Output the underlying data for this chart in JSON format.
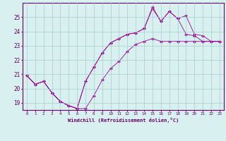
{
  "xlabel": "Windchill (Refroidissement éolien,°C)",
  "hours": [
    0,
    1,
    2,
    3,
    4,
    5,
    6,
    7,
    8,
    9,
    10,
    11,
    12,
    13,
    14,
    15,
    16,
    17,
    18,
    19,
    20,
    21,
    22,
    23
  ],
  "series_min": [
    20.9,
    20.3,
    20.5,
    19.7,
    19.1,
    18.8,
    18.6,
    18.6,
    19.5,
    20.6,
    21.4,
    21.9,
    22.6,
    23.1,
    23.3,
    23.5,
    23.3,
    23.3,
    23.3,
    23.3,
    23.3,
    23.3,
    23.3,
    23.3
  ],
  "series_mean": [
    20.9,
    20.3,
    20.5,
    19.7,
    19.1,
    18.8,
    18.6,
    20.5,
    21.5,
    22.5,
    23.2,
    23.5,
    23.8,
    23.9,
    24.2,
    25.6,
    24.7,
    25.4,
    24.9,
    23.8,
    23.7,
    23.3,
    23.3,
    23.3
  ],
  "series_max": [
    20.9,
    20.3,
    20.5,
    19.7,
    19.1,
    18.8,
    18.6,
    20.5,
    21.5,
    22.5,
    23.2,
    23.5,
    23.8,
    23.9,
    24.2,
    25.7,
    24.7,
    25.4,
    24.9,
    25.1,
    23.8,
    23.7,
    23.3,
    23.3
  ],
  "line_color": "#990099",
  "marker": "D",
  "marker_size": 2,
  "bg_color": "#d8f0f0",
  "grid_color": "#aacccc",
  "axis_color": "#660066",
  "ylim": [
    18.5,
    26.0
  ],
  "yticks": [
    19,
    20,
    21,
    22,
    23,
    24,
    25
  ],
  "xticks": [
    0,
    1,
    2,
    3,
    4,
    5,
    6,
    7,
    8,
    9,
    10,
    11,
    12,
    13,
    14,
    15,
    16,
    17,
    18,
    19,
    20,
    21,
    22,
    23
  ]
}
